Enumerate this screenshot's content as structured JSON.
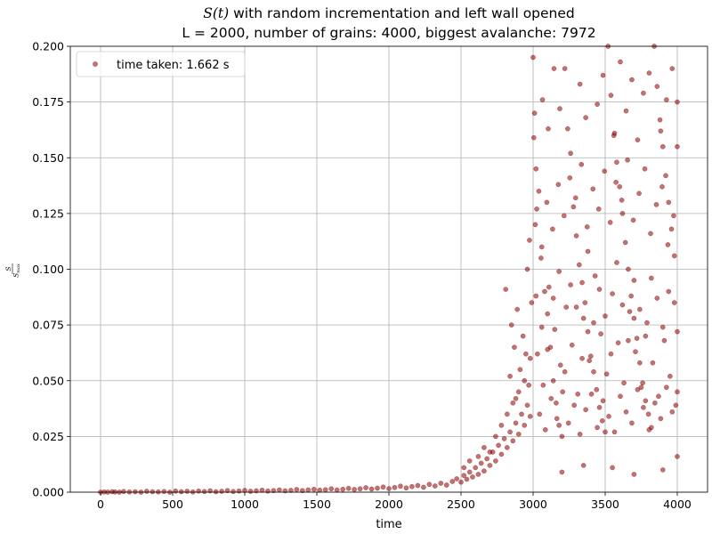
{
  "chart_data": {
    "type": "scatter",
    "title_line1_math": "S(t)",
    "title_line1_rest": " with random incrementation and left wall opened",
    "title_line2": "L = 2000, number of grains: 4000, biggest avalanche: 7972",
    "xlabel": "time",
    "ylabel": "S / S_max",
    "ylabel_num": "S",
    "ylabel_den": "S",
    "ylabel_den_sub": "max",
    "xlim": [
      -210,
      4210
    ],
    "ylim": [
      0,
      0.2
    ],
    "x_ticks": [
      0,
      500,
      1000,
      1500,
      2000,
      2500,
      3000,
      3500,
      4000
    ],
    "x_tick_labels": [
      "0",
      "500",
      "1000",
      "1500",
      "2000",
      "2500",
      "3000",
      "3500",
      "4000"
    ],
    "y_ticks": [
      0,
      0.025,
      0.05,
      0.075,
      0.1,
      0.125,
      0.15,
      0.175,
      0.2
    ],
    "y_tick_labels": [
      "0.000",
      "0.025",
      "0.050",
      "0.075",
      "0.100",
      "0.125",
      "0.150",
      "0.175",
      "0.200"
    ],
    "grid": true,
    "legend_position": "top-left",
    "series": [
      {
        "name": "time taken: 1.662 s",
        "color": "#8b0000",
        "opacity": 0.55,
        "marker": "circle",
        "points": [
          [
            0,
            0.0
          ],
          [
            25,
            0.0001
          ],
          [
            50,
            0.0
          ],
          [
            80,
            0.0002
          ],
          [
            100,
            0.0001
          ],
          [
            130,
            0.0
          ],
          [
            160,
            0.0003
          ],
          [
            200,
            0.0001
          ],
          [
            240,
            0.0002
          ],
          [
            280,
            0.0
          ],
          [
            320,
            0.0004
          ],
          [
            360,
            0.0002
          ],
          [
            400,
            0.0001
          ],
          [
            440,
            0.0003
          ],
          [
            480,
            0.0
          ],
          [
            520,
            0.0005
          ],
          [
            560,
            0.0002
          ],
          [
            600,
            0.0004
          ],
          [
            640,
            0.0001
          ],
          [
            680,
            0.0005
          ],
          [
            720,
            0.0003
          ],
          [
            760,
            0.0006
          ],
          [
            800,
            0.0002
          ],
          [
            840,
            0.0004
          ],
          [
            880,
            0.0007
          ],
          [
            920,
            0.0003
          ],
          [
            960,
            0.0005
          ],
          [
            1000,
            0.0008
          ],
          [
            1040,
            0.0004
          ],
          [
            1080,
            0.0006
          ],
          [
            1120,
            0.0009
          ],
          [
            1160,
            0.0005
          ],
          [
            1200,
            0.0007
          ],
          [
            1240,
            0.001
          ],
          [
            1280,
            0.0006
          ],
          [
            1320,
            0.0008
          ],
          [
            1360,
            0.0012
          ],
          [
            1400,
            0.0007
          ],
          [
            1440,
            0.001
          ],
          [
            1480,
            0.0013
          ],
          [
            1520,
            0.0009
          ],
          [
            1560,
            0.0011
          ],
          [
            1600,
            0.0015
          ],
          [
            1640,
            0.001
          ],
          [
            1680,
            0.0013
          ],
          [
            1720,
            0.0017
          ],
          [
            1760,
            0.0012
          ],
          [
            1800,
            0.0015
          ],
          [
            1840,
            0.002
          ],
          [
            1880,
            0.0014
          ],
          [
            1920,
            0.0018
          ],
          [
            1960,
            0.0023
          ],
          [
            2000,
            0.0016
          ],
          [
            2040,
            0.0021
          ],
          [
            2080,
            0.0027
          ],
          [
            2120,
            0.0019
          ],
          [
            2160,
            0.0025
          ],
          [
            2200,
            0.003
          ],
          [
            2240,
            0.0022
          ],
          [
            2280,
            0.0035
          ],
          [
            2320,
            0.0028
          ],
          [
            2360,
            0.004
          ],
          [
            2400,
            0.0032
          ],
          [
            2440,
            0.0048
          ],
          [
            2470,
            0.006
          ],
          [
            2500,
            0.0045
          ],
          [
            2520,
            0.0075
          ],
          [
            2540,
            0.0058
          ],
          [
            2560,
            0.009
          ],
          [
            2580,
            0.0068
          ],
          [
            2600,
            0.011
          ],
          [
            2620,
            0.008
          ],
          [
            2640,
            0.013
          ],
          [
            2660,
            0.0095
          ],
          [
            2680,
            0.015
          ],
          [
            2700,
            0.012
          ],
          [
            2720,
            0.018
          ],
          [
            2740,
            0.014
          ],
          [
            2760,
            0.021
          ],
          [
            2780,
            0.017
          ],
          [
            2800,
            0.024
          ],
          [
            2820,
            0.02
          ],
          [
            2840,
            0.027
          ],
          [
            2860,
            0.023
          ],
          [
            2880,
            0.031
          ],
          [
            2900,
            0.026
          ],
          [
            2920,
            0.035
          ],
          [
            2940,
            0.03
          ],
          [
            2960,
            0.039
          ],
          [
            2980,
            0.034
          ],
          [
            2520,
            0.011
          ],
          [
            2560,
            0.014
          ],
          [
            2620,
            0.016
          ],
          [
            2660,
            0.02
          ],
          [
            2700,
            0.018
          ],
          [
            2740,
            0.025
          ],
          [
            2780,
            0.03
          ],
          [
            2820,
            0.035
          ],
          [
            2860,
            0.04
          ],
          [
            2900,
            0.045
          ],
          [
            2940,
            0.05
          ],
          [
            2980,
            0.06
          ],
          [
            2810,
            0.091
          ],
          [
            2850,
            0.075
          ],
          [
            2870,
            0.065
          ],
          [
            2890,
            0.082
          ],
          [
            2910,
            0.055
          ],
          [
            2930,
            0.07
          ],
          [
            2950,
            0.062
          ],
          [
            2970,
            0.048
          ],
          [
            2990,
            0.085
          ],
          [
            2880,
            0.042
          ],
          [
            2840,
            0.052
          ],
          [
            2960,
            0.1
          ],
          [
            2975,
            0.113
          ],
          [
            3000,
            0.195
          ],
          [
            3010,
            0.17
          ],
          [
            3020,
            0.145
          ],
          [
            3040,
            0.135
          ],
          [
            3060,
            0.11
          ],
          [
            3080,
            0.09
          ],
          [
            3100,
            0.08
          ],
          [
            3120,
            0.065
          ],
          [
            3140,
            0.05
          ],
          [
            3160,
            0.04
          ],
          [
            3180,
            0.03
          ],
          [
            3200,
            0.025
          ],
          [
            3220,
            0.19
          ],
          [
            3240,
            0.163
          ],
          [
            3260,
            0.152
          ],
          [
            3280,
            0.128
          ],
          [
            3300,
            0.115
          ],
          [
            3320,
            0.102
          ],
          [
            3340,
            0.094
          ],
          [
            3360,
            0.085
          ],
          [
            3380,
            0.072
          ],
          [
            3400,
            0.061
          ],
          [
            3420,
            0.054
          ],
          [
            3440,
            0.046
          ],
          [
            3460,
            0.038
          ],
          [
            3480,
            0.032
          ],
          [
            3500,
            0.027
          ],
          [
            3520,
            0.2
          ],
          [
            3540,
            0.178
          ],
          [
            3560,
            0.16
          ],
          [
            3580,
            0.148
          ],
          [
            3600,
            0.137
          ],
          [
            3620,
            0.125
          ],
          [
            3640,
            0.112
          ],
          [
            3660,
            0.1
          ],
          [
            3680,
            0.088
          ],
          [
            3700,
            0.078
          ],
          [
            3720,
            0.069
          ],
          [
            3740,
            0.058
          ],
          [
            3760,
            0.049
          ],
          [
            3780,
            0.041
          ],
          [
            3800,
            0.035
          ],
          [
            3820,
            0.029
          ],
          [
            3840,
            0.2
          ],
          [
            3860,
            0.182
          ],
          [
            3880,
            0.167
          ],
          [
            3900,
            0.155
          ],
          [
            3920,
            0.142
          ],
          [
            3940,
            0.13
          ],
          [
            3960,
            0.118
          ],
          [
            3980,
            0.106
          ],
          [
            4000,
            0.175
          ],
          [
            4000,
            0.155
          ],
          [
            4000,
            0.072
          ],
          [
            4000,
            0.045
          ],
          [
            4000,
            0.016
          ],
          [
            3030,
            0.062
          ],
          [
            3070,
            0.048
          ],
          [
            3110,
            0.092
          ],
          [
            3150,
            0.073
          ],
          [
            3190,
            0.057
          ],
          [
            3230,
            0.083
          ],
          [
            3270,
            0.066
          ],
          [
            3310,
            0.044
          ],
          [
            3350,
            0.078
          ],
          [
            3390,
            0.059
          ],
          [
            3430,
            0.097
          ],
          [
            3470,
            0.071
          ],
          [
            3510,
            0.053
          ],
          [
            3550,
            0.089
          ],
          [
            3590,
            0.067
          ],
          [
            3630,
            0.049
          ],
          [
            3670,
            0.081
          ],
          [
            3710,
            0.063
          ],
          [
            3750,
            0.047
          ],
          [
            3790,
            0.076
          ],
          [
            3830,
            0.058
          ],
          [
            3870,
            0.043
          ],
          [
            3910,
            0.068
          ],
          [
            3950,
            0.052
          ],
          [
            3990,
            0.039
          ],
          [
            3015,
            0.12
          ],
          [
            3055,
            0.105
          ],
          [
            3095,
            0.13
          ],
          [
            3135,
            0.118
          ],
          [
            3175,
            0.138
          ],
          [
            3215,
            0.124
          ],
          [
            3255,
            0.141
          ],
          [
            3295,
            0.132
          ],
          [
            3335,
            0.147
          ],
          [
            3375,
            0.119
          ],
          [
            3415,
            0.136
          ],
          [
            3455,
            0.127
          ],
          [
            3495,
            0.144
          ],
          [
            3535,
            0.121
          ],
          [
            3575,
            0.139
          ],
          [
            3615,
            0.131
          ],
          [
            3655,
            0.149
          ],
          [
            3695,
            0.122
          ],
          [
            3735,
            0.134
          ],
          [
            3775,
            0.145
          ],
          [
            3815,
            0.116
          ],
          [
            3855,
            0.129
          ],
          [
            3895,
            0.137
          ],
          [
            3935,
            0.111
          ],
          [
            3975,
            0.124
          ],
          [
            3045,
            0.035
          ],
          [
            3085,
            0.028
          ],
          [
            3125,
            0.042
          ],
          [
            3165,
            0.033
          ],
          [
            3205,
            0.045
          ],
          [
            3245,
            0.031
          ],
          [
            3285,
            0.039
          ],
          [
            3325,
            0.026
          ],
          [
            3365,
            0.037
          ],
          [
            3405,
            0.044
          ],
          [
            3445,
            0.029
          ],
          [
            3485,
            0.041
          ],
          [
            3525,
            0.034
          ],
          [
            3565,
            0.027
          ],
          [
            3605,
            0.043
          ],
          [
            3645,
            0.036
          ],
          [
            3685,
            0.031
          ],
          [
            3725,
            0.046
          ],
          [
            3765,
            0.038
          ],
          [
            3805,
            0.028
          ],
          [
            3845,
            0.04
          ],
          [
            3885,
            0.033
          ],
          [
            3925,
            0.047
          ],
          [
            3965,
            0.036
          ],
          [
            3005,
            0.159
          ],
          [
            3025,
            0.127
          ],
          [
            3065,
            0.176
          ],
          [
            3105,
            0.163
          ],
          [
            3145,
            0.19
          ],
          [
            3185,
            0.172
          ],
          [
            3325,
            0.183
          ],
          [
            3365,
            0.168
          ],
          [
            3445,
            0.174
          ],
          [
            3485,
            0.187
          ],
          [
            3565,
            0.161
          ],
          [
            3605,
            0.193
          ],
          [
            3645,
            0.171
          ],
          [
            3685,
            0.185
          ],
          [
            3725,
            0.158
          ],
          [
            3765,
            0.179
          ],
          [
            3805,
            0.188
          ],
          [
            3885,
            0.162
          ],
          [
            3925,
            0.176
          ],
          [
            3965,
            0.19
          ],
          [
            3020,
            0.088
          ],
          [
            3060,
            0.074
          ],
          [
            3100,
            0.064
          ],
          [
            3140,
            0.087
          ],
          [
            3180,
            0.099
          ],
          [
            3220,
            0.054
          ],
          [
            3260,
            0.093
          ],
          [
            3300,
            0.083
          ],
          [
            3340,
            0.06
          ],
          [
            3380,
            0.108
          ],
          [
            3420,
            0.076
          ],
          [
            3460,
            0.091
          ],
          [
            3500,
            0.079
          ],
          [
            3540,
            0.062
          ],
          [
            3580,
            0.103
          ],
          [
            3620,
            0.084
          ],
          [
            3660,
            0.068
          ],
          [
            3700,
            0.095
          ],
          [
            3740,
            0.082
          ],
          [
            3780,
            0.07
          ],
          [
            3820,
            0.096
          ],
          [
            3860,
            0.087
          ],
          [
            3900,
            0.074
          ],
          [
            3940,
            0.09
          ],
          [
            3980,
            0.085
          ],
          [
            3200,
            0.009
          ],
          [
            3350,
            0.012
          ],
          [
            3550,
            0.011
          ],
          [
            3700,
            0.008
          ],
          [
            3900,
            0.01
          ]
        ]
      }
    ]
  }
}
